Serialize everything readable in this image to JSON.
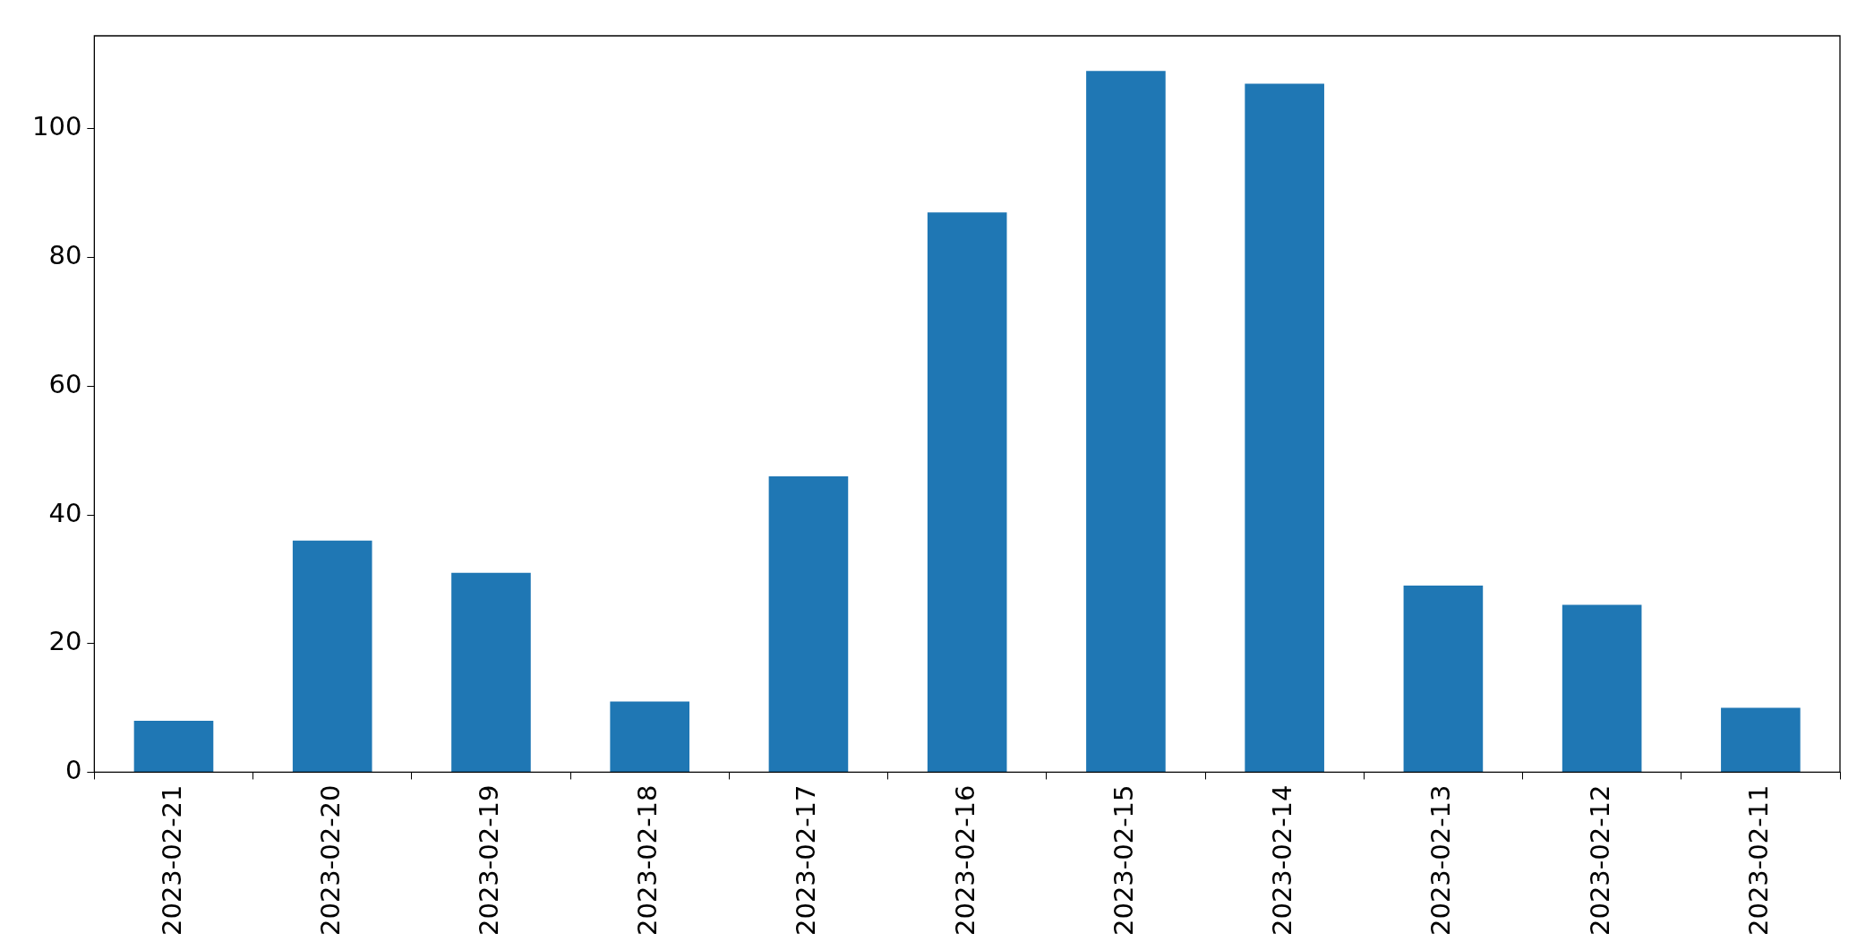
{
  "chart_data": {
    "type": "bar",
    "categories": [
      "2023-02-21",
      "2023-02-20",
      "2023-02-19",
      "2023-02-18",
      "2023-02-17",
      "2023-02-16",
      "2023-02-15",
      "2023-02-14",
      "2023-02-13",
      "2023-02-12",
      "2023-02-11"
    ],
    "values": [
      8,
      36,
      31,
      11,
      46,
      87,
      109,
      107,
      29,
      26,
      10
    ],
    "color": "#1f77b4",
    "ylim": [
      0,
      114.45
    ],
    "yticks": [
      0,
      20,
      40,
      60,
      80,
      100
    ],
    "grid": false,
    "legend": false
  }
}
